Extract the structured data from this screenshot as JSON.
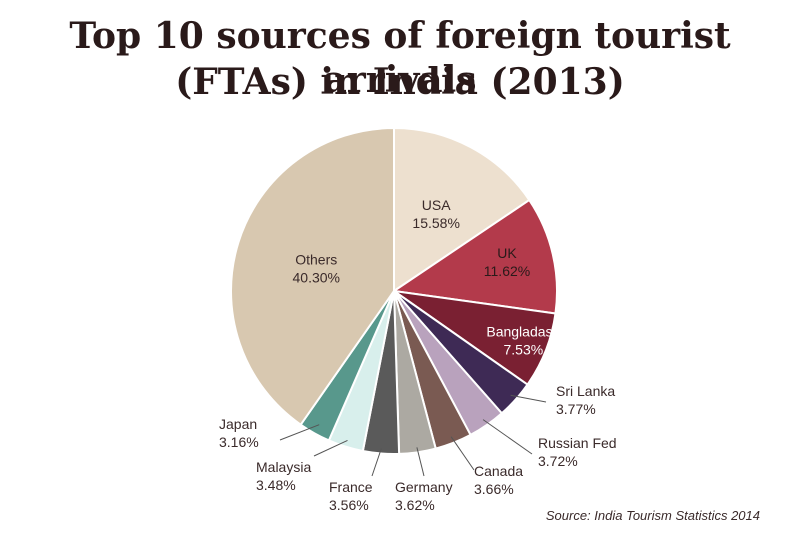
{
  "title_line1": "Top 10 sources of foreign tourist arrivals",
  "title_line2": "(FTAs) in India (2013)",
  "source": "Source: India Tourism Statistics 2014",
  "chart_data": {
    "type": "pie",
    "title": "Top 10 sources of foreign tourist arrivals (FTAs) in India (2013)",
    "unit": "%",
    "slices": [
      {
        "label": "USA",
        "value": 15.58,
        "display": "15.58%",
        "color": "#ede0cf"
      },
      {
        "label": "UK",
        "value": 11.62,
        "display": "11.62%",
        "color": "#b33a4b"
      },
      {
        "label": "Bangladash",
        "value": 7.53,
        "display": "7.53%",
        "color": "#7a2032"
      },
      {
        "label": "Sri Lanka",
        "value": 3.77,
        "display": "3.77%",
        "color": "#3e2a55"
      },
      {
        "label": "Russian Fed",
        "value": 3.72,
        "display": "3.72%",
        "color": "#b9a2bd"
      },
      {
        "label": "Canada",
        "value": 3.66,
        "display": "3.66%",
        "color": "#7a5a52"
      },
      {
        "label": "Germany",
        "value": 3.62,
        "display": "3.62%",
        "color": "#aca9a2"
      },
      {
        "label": "France",
        "value": 3.56,
        "display": "3.56%",
        "color": "#5a5a5a"
      },
      {
        "label": "Malaysia",
        "value": 3.48,
        "display": "3.48%",
        "color": "#d8efec"
      },
      {
        "label": "Japan",
        "value": 3.16,
        "display": "3.16%",
        "color": "#58988c"
      },
      {
        "label": "Others",
        "value": 40.3,
        "display": "40.30%",
        "color": "#d8c8b0"
      }
    ]
  }
}
